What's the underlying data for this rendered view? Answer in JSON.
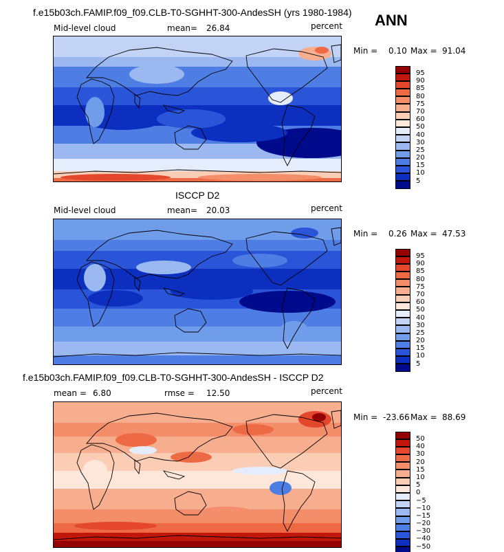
{
  "season": "ANN",
  "chart_data": [
    {
      "type": "heatmap",
      "title": "f.e15b03ch.FAMIP.f09_f09.CLB-T0-SGHHT-300-AndesSH (yrs 1980-1984)",
      "left_label": "Mid-level cloud",
      "stat_label": "mean=",
      "stat_value": "26.84",
      "units": "percent",
      "min_label": "Min =",
      "min_value": "0.10",
      "max_label": "Max =",
      "max_value": "91.04",
      "min": 0.1,
      "max": 91.04,
      "mean": 26.84,
      "contour_levels": [
        5,
        10,
        15,
        20,
        25,
        30,
        40,
        50,
        60,
        70,
        75,
        80,
        85,
        90,
        95
      ],
      "colorbar_labels": [
        "95",
        "90",
        "85",
        "80",
        "75",
        "70",
        "60",
        "50",
        "40",
        "30",
        "25",
        "20",
        "15",
        "10",
        "5"
      ],
      "colorbar_colors": [
        "#930000",
        "#c1160c",
        "#e4472c",
        "#ee6a45",
        "#f38d6a",
        "#f7ae8f",
        "#fbcdb4",
        "#fde7da",
        "#e5ecfb",
        "#c2d3f6",
        "#9bb9f0",
        "#6f9de9",
        "#4e7ee3",
        "#2b55d8",
        "#0d2fc0",
        "#000a8c"
      ]
    },
    {
      "type": "heatmap",
      "title": "ISCCP D2",
      "left_label": "Mid-level cloud",
      "stat_label": "mean=",
      "stat_value": "20.03",
      "units": "percent",
      "min_label": "Min =",
      "min_value": "0.26",
      "max_label": "Max =",
      "max_value": "47.53",
      "min": 0.26,
      "max": 47.53,
      "mean": 20.03,
      "contour_levels": [
        5,
        10,
        15,
        20,
        25,
        30,
        40,
        50,
        60,
        70,
        75,
        80,
        85,
        90,
        95
      ],
      "colorbar_labels": [
        "95",
        "90",
        "85",
        "80",
        "75",
        "70",
        "60",
        "50",
        "40",
        "30",
        "25",
        "20",
        "15",
        "10",
        "5"
      ],
      "colorbar_colors": [
        "#930000",
        "#c1160c",
        "#e4472c",
        "#ee6a45",
        "#f38d6a",
        "#f7ae8f",
        "#fbcdb4",
        "#fde7da",
        "#e5ecfb",
        "#c2d3f6",
        "#9bb9f0",
        "#6f9de9",
        "#4e7ee3",
        "#2b55d8",
        "#0d2fc0",
        "#000a8c"
      ]
    },
    {
      "type": "heatmap",
      "title": "f.e15b03ch.FAMIP.f09_f09.CLB-T0-SGHHT-300-AndesSH - ISCCP D2",
      "left_label": "mean =",
      "left_value": "6.80",
      "stat_label": "rmse =",
      "stat_value": "12.50",
      "units": "percent",
      "min_label": "Min =",
      "min_value": "-23.66",
      "max_label": "Max =",
      "max_value": "88.69",
      "min": -23.66,
      "max": 88.69,
      "mean": 6.8,
      "rmse": 12.5,
      "contour_levels": [
        -50,
        -40,
        -30,
        -20,
        -15,
        -10,
        -5,
        0,
        5,
        10,
        15,
        20,
        30,
        40,
        50
      ],
      "colorbar_labels": [
        "50",
        "40",
        "30",
        "20",
        "15",
        "10",
        "5",
        "0",
        "−5",
        "−10",
        "−15",
        "−20",
        "−30",
        "−40",
        "−50"
      ],
      "colorbar_colors": [
        "#930000",
        "#c1160c",
        "#e4472c",
        "#ee6a45",
        "#f38d6a",
        "#f7ae8f",
        "#fbcdb4",
        "#fde7da",
        "#e5ecfb",
        "#c2d3f6",
        "#9bb9f0",
        "#6f9de9",
        "#4e7ee3",
        "#2b55d8",
        "#0d2fc0",
        "#000a8c"
      ]
    }
  ]
}
